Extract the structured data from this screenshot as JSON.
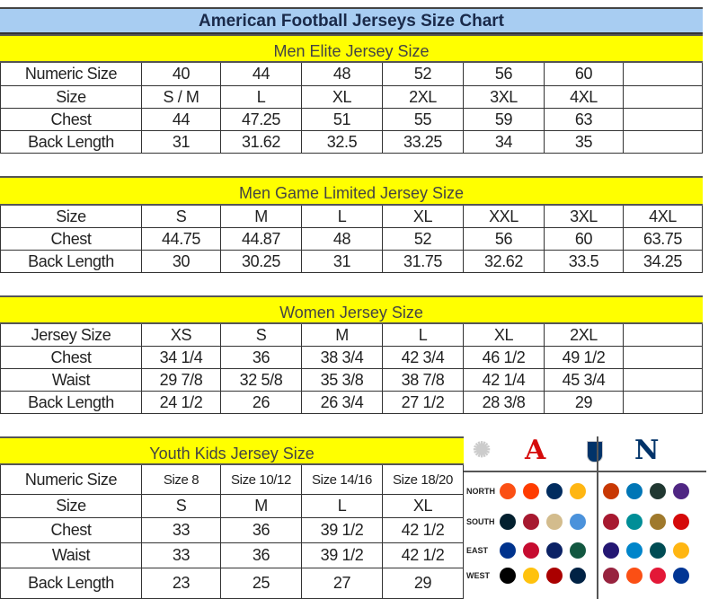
{
  "title": "American Football Jerseys Size Chart",
  "colors": {
    "title_band": "#a8cdf2",
    "section_band": "#ffff00",
    "afc": "#d50a0a",
    "nfc": "#013369"
  },
  "sections": [
    {
      "id": "men-elite",
      "heading": "Men Elite Jersey Size",
      "rows": [
        [
          "Numeric Size",
          "40",
          "44",
          "48",
          "52",
          "56",
          "60",
          ""
        ],
        [
          "Size",
          "S / M",
          "L",
          "XL",
          "2XL",
          "3XL",
          "4XL",
          ""
        ],
        [
          "Chest",
          "44",
          "47.25",
          "51",
          "55",
          "59",
          "63",
          ""
        ],
        [
          "Back Length",
          "31",
          "31.62",
          "32.5",
          "33.25",
          "34",
          "35",
          ""
        ]
      ]
    },
    {
      "id": "men-game-limited",
      "heading": "Men Game Limited Jersey Size",
      "rows": [
        [
          "Size",
          "S",
          "M",
          "L",
          "XL",
          "XXL",
          "3XL",
          "4XL"
        ],
        [
          "Chest",
          "44.75",
          "44.87",
          "48",
          "52",
          "56",
          "60",
          "63.75"
        ],
        [
          "Back Length",
          "30",
          "30.25",
          "31",
          "31.75",
          "32.62",
          "33.5",
          "34.25"
        ]
      ]
    },
    {
      "id": "women",
      "heading": "Women Jersey Size",
      "rows": [
        [
          "Jersey Size",
          "XS",
          "S",
          "M",
          "L",
          "XL",
          "2XL",
          ""
        ],
        [
          "Chest",
          "34 1/4",
          "36",
          "38 3/4",
          "42 3/4",
          "46 1/2",
          "49 1/2",
          ""
        ],
        [
          "Waist",
          "29 7/8",
          "32 5/8",
          "35 3/8",
          "38 7/8",
          "42 1/4",
          "45 3/4",
          ""
        ],
        [
          "Back Length",
          "24 1/2",
          "26",
          "26 3/4",
          "27 1/2",
          "28 3/8",
          "29",
          ""
        ]
      ]
    },
    {
      "id": "youth-kids",
      "heading": "Youth Kids Jersey Size",
      "rows": [
        [
          "Numeric Size",
          "Size 8",
          "Size 10/12",
          "Size 14/16",
          "Size 18/20"
        ],
        [
          "Size",
          "S",
          "M",
          "L",
          "XL"
        ],
        [
          "Chest",
          "33",
          "36",
          "39 1/2",
          "42 1/2"
        ],
        [
          "Waist",
          "33",
          "36",
          "39 1/2",
          "42 1/2"
        ],
        [
          "Back Length",
          "23",
          "25",
          "27",
          "29"
        ]
      ]
    }
  ],
  "logos": {
    "afc_letter": "A",
    "nfc_letter": "N",
    "divisions": [
      "NORTH",
      "SOUTH",
      "EAST",
      "WEST"
    ],
    "afc_teams": [
      [
        {
          "name": "bengals",
          "color": "#fb4f14"
        },
        {
          "name": "browns",
          "color": "#ff3c00"
        },
        {
          "name": "colts",
          "color": "#002c5f"
        },
        {
          "name": "steelers",
          "color": "#ffb612"
        }
      ],
      [
        {
          "name": "texans",
          "color": "#03202f"
        },
        {
          "name": "texans-2",
          "color": "#a71930"
        },
        {
          "name": "saints",
          "color": "#d3bc8d"
        },
        {
          "name": "titans",
          "color": "#4b92db"
        }
      ],
      [
        {
          "name": "bills",
          "color": "#00338d"
        },
        {
          "name": "patriots",
          "color": "#c60c30"
        },
        {
          "name": "giants",
          "color": "#0b2265"
        },
        {
          "name": "jets",
          "color": "#125740"
        }
      ],
      [
        {
          "name": "raiders",
          "color": "#000000"
        },
        {
          "name": "chargers",
          "color": "#ffc20e"
        },
        {
          "name": "49ers",
          "color": "#aa0000"
        },
        {
          "name": "seahawks",
          "color": "#002244"
        }
      ]
    ],
    "nfc_teams": [
      [
        {
          "name": "bears",
          "color": "#c83803"
        },
        {
          "name": "lions",
          "color": "#0076b6"
        },
        {
          "name": "packers",
          "color": "#203731"
        },
        {
          "name": "vikings",
          "color": "#4f2683"
        }
      ],
      [
        {
          "name": "falcons",
          "color": "#a71930"
        },
        {
          "name": "dolphins",
          "color": "#008e97"
        },
        {
          "name": "jaguars",
          "color": "#9f792c"
        },
        {
          "name": "buccaneers",
          "color": "#d50a0a"
        }
      ],
      [
        {
          "name": "ravens",
          "color": "#241773"
        },
        {
          "name": "panthers",
          "color": "#0085ca"
        },
        {
          "name": "eagles",
          "color": "#004c54"
        },
        {
          "name": "redskins",
          "color": "#ffb612"
        }
      ],
      [
        {
          "name": "cardinals",
          "color": "#97233f"
        },
        {
          "name": "broncos",
          "color": "#fb4f14"
        },
        {
          "name": "chiefs",
          "color": "#e31837"
        },
        {
          "name": "rams",
          "color": "#003594"
        }
      ]
    ]
  }
}
